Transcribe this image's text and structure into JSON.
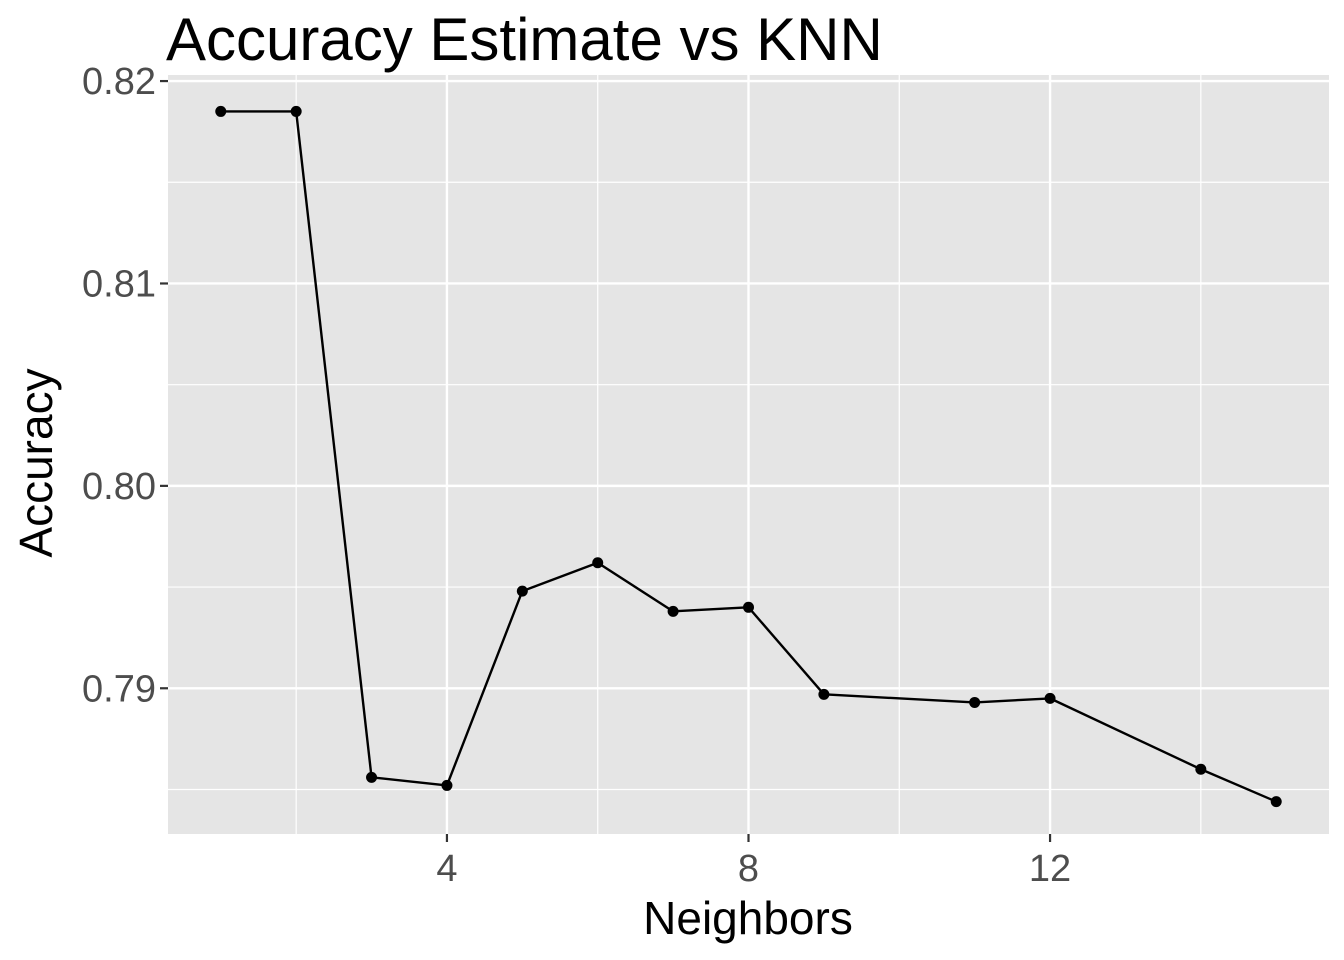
{
  "chart_data": {
    "type": "line",
    "title": "Accuracy Estimate vs KNN",
    "xlabel": "Neighbors",
    "ylabel": "Accuracy",
    "x": [
      1,
      2,
      3,
      4,
      5,
      6,
      7,
      8,
      9,
      11,
      12,
      14,
      15
    ],
    "y": [
      0.8185,
      0.8185,
      0.7856,
      0.7852,
      0.7948,
      0.7962,
      0.7938,
      0.794,
      0.7897,
      0.7893,
      0.7895,
      0.786,
      0.7844
    ],
    "xlim": [
      0.3,
      15.7
    ],
    "ylim": [
      0.7828,
      0.8203
    ],
    "xticks": [
      4,
      8,
      12
    ],
    "xtick_labels": [
      "4",
      "8",
      "12"
    ],
    "xticks_minor": [
      2,
      6,
      10,
      14
    ],
    "yticks": [
      0.79,
      0.8,
      0.81,
      0.82
    ],
    "ytick_labels": [
      "0.79",
      "0.80",
      "0.81",
      "0.82"
    ],
    "yticks_minor": [
      0.785,
      0.795,
      0.805,
      0.815
    ],
    "grid": true,
    "legend": "none",
    "colors": {
      "panel": "#e5e5e5",
      "grid": "#ffffff",
      "line": "#000000",
      "tick_text": "#4d4d4d",
      "tick_mark": "#333333"
    }
  }
}
